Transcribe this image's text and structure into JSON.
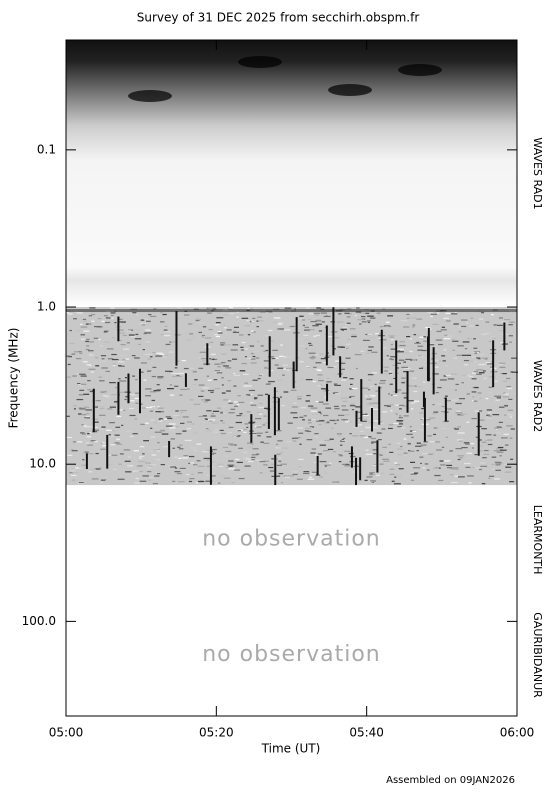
{
  "chart_data": {
    "type": "spectrogram",
    "title": "Survey of 31 DEC 2025 from secchirh.obspm.fr",
    "xlabel": "Time (UT)",
    "ylabel": "Frequency (MHz)",
    "xlim": [
      "05:00",
      "06:00"
    ],
    "xticks": [
      "05:00",
      "05:20",
      "05:40",
      "06:00"
    ],
    "ylim": [
      0.02,
      400
    ],
    "y_log": true,
    "y_reversed": true,
    "yticks": [
      0.1,
      {
        "value": 1,
        "label": "1.0"
      },
      {
        "value": 10,
        "label": "10.0"
      },
      {
        "value": 100,
        "label": "100.0"
      }
    ],
    "bands": [
      {
        "name": "WAVES RAD1",
        "range": [
          0.02,
          1
        ]
      },
      {
        "name": "WAVES RAD2",
        "range": [
          1,
          13.6
        ]
      },
      {
        "name": "LEARMONTH",
        "range": [
          13.6,
          67
        ],
        "annotation": "no observation"
      },
      {
        "name": "GAURIBIDANUR",
        "range": [
          67,
          400
        ],
        "annotation": "no observation"
      }
    ],
    "footer": "Assembled on 09JAN2026"
  }
}
